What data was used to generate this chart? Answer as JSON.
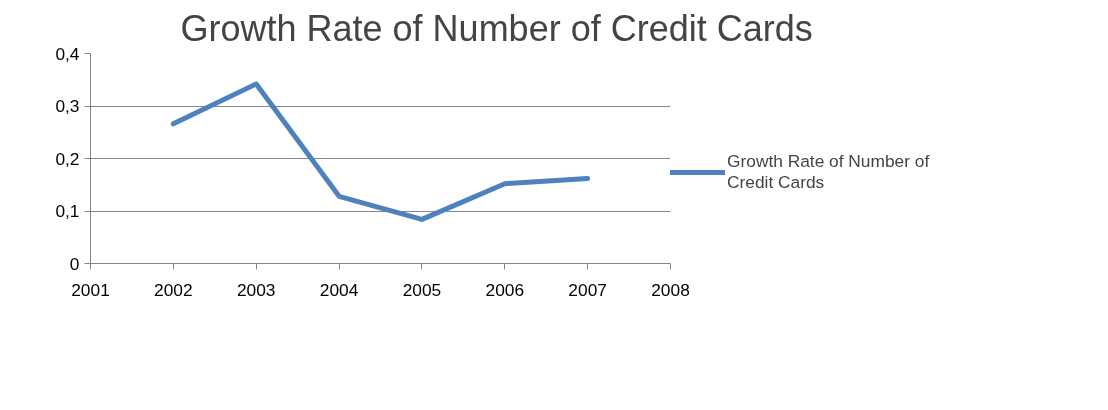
{
  "chart_data": {
    "type": "line",
    "title": "Growth Rate of Number of Credit Cards",
    "x": [
      2002,
      2003,
      2004,
      2005,
      2006,
      2007
    ],
    "series": [
      {
        "name": "Growth Rate of Number of Credit Cards",
        "color": "#4f81bd",
        "values": [
          0.266,
          0.342,
          0.128,
          0.084,
          0.152,
          0.162
        ]
      }
    ],
    "xlim": [
      2001,
      2008
    ],
    "xticks": [
      2001,
      2002,
      2003,
      2004,
      2005,
      2006,
      2007,
      2008
    ],
    "ylim": [
      0,
      0.4
    ],
    "yticks": [
      0,
      {
        "value": 0.1,
        "label": "0,1"
      },
      {
        "value": 0.2,
        "label": "0,2"
      },
      {
        "value": 0.3,
        "label": "0,3"
      },
      {
        "value": 0.4,
        "label": "0,4"
      }
    ],
    "grid": "y",
    "legend": "right",
    "marker": "none",
    "line_style": "solid"
  }
}
